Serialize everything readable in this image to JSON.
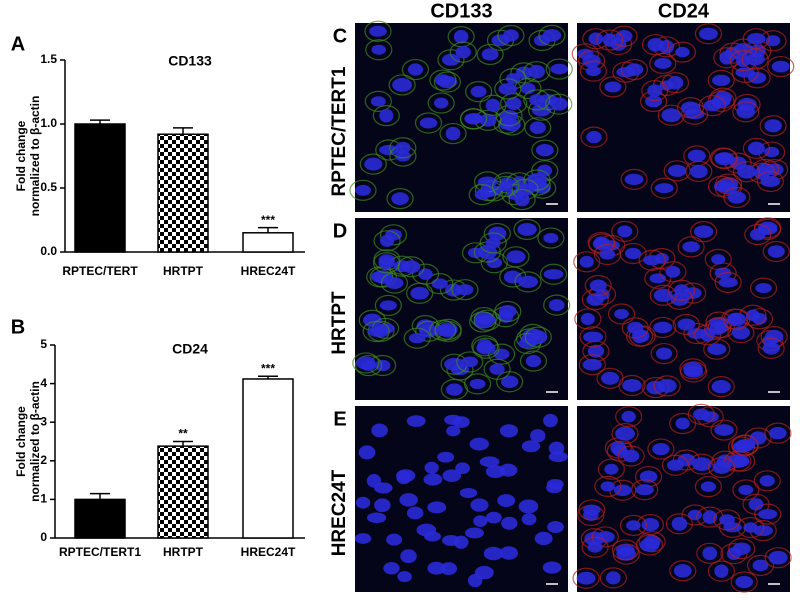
{
  "chart_data": [
    {
      "type": "bar",
      "panel_label": "A",
      "title": "CD133",
      "ylabel": [
        "Fold change",
        "normalized to β-actin"
      ],
      "categories": [
        "RPTEC/TERT",
        "HRTPT",
        "HREC24T"
      ],
      "values": [
        1.0,
        0.92,
        0.15
      ],
      "errors": [
        0.03,
        0.05,
        0.04
      ],
      "annotations": [
        null,
        null,
        "***"
      ],
      "colors": [
        "black",
        "checkered",
        "white"
      ],
      "ylim": [
        0,
        1.5
      ],
      "yticks": [
        {
          "value": 0,
          "label": "0.0"
        },
        {
          "value": 0.5,
          "label": "0.5"
        },
        {
          "value": 1,
          "label": "1.0"
        },
        {
          "value": 1.5,
          "label": "1.5"
        }
      ]
    },
    {
      "type": "bar",
      "panel_label": "B",
      "title": "CD24",
      "ylabel": [
        "Fold change",
        "normalized to β-actin"
      ],
      "categories": [
        "RPTEC/TERT1",
        "HRTPT",
        "HREC24T"
      ],
      "values": [
        1.0,
        2.38,
        4.12
      ],
      "errors": [
        0.15,
        0.12,
        0.07
      ],
      "annotations": [
        null,
        "**",
        "***"
      ],
      "colors": [
        "black",
        "checkered",
        "white"
      ],
      "ylim": [
        0,
        5
      ],
      "yticks": [
        0,
        1,
        2,
        3,
        4,
        5
      ]
    }
  ],
  "panels": {
    "columns": [
      "CD133",
      "CD24"
    ],
    "rows": [
      {
        "letter": "C",
        "label": "RPTEC/TERT1"
      },
      {
        "letter": "D",
        "label": "HRTPT"
      },
      {
        "letter": "E",
        "label": "HREC24T"
      }
    ]
  }
}
